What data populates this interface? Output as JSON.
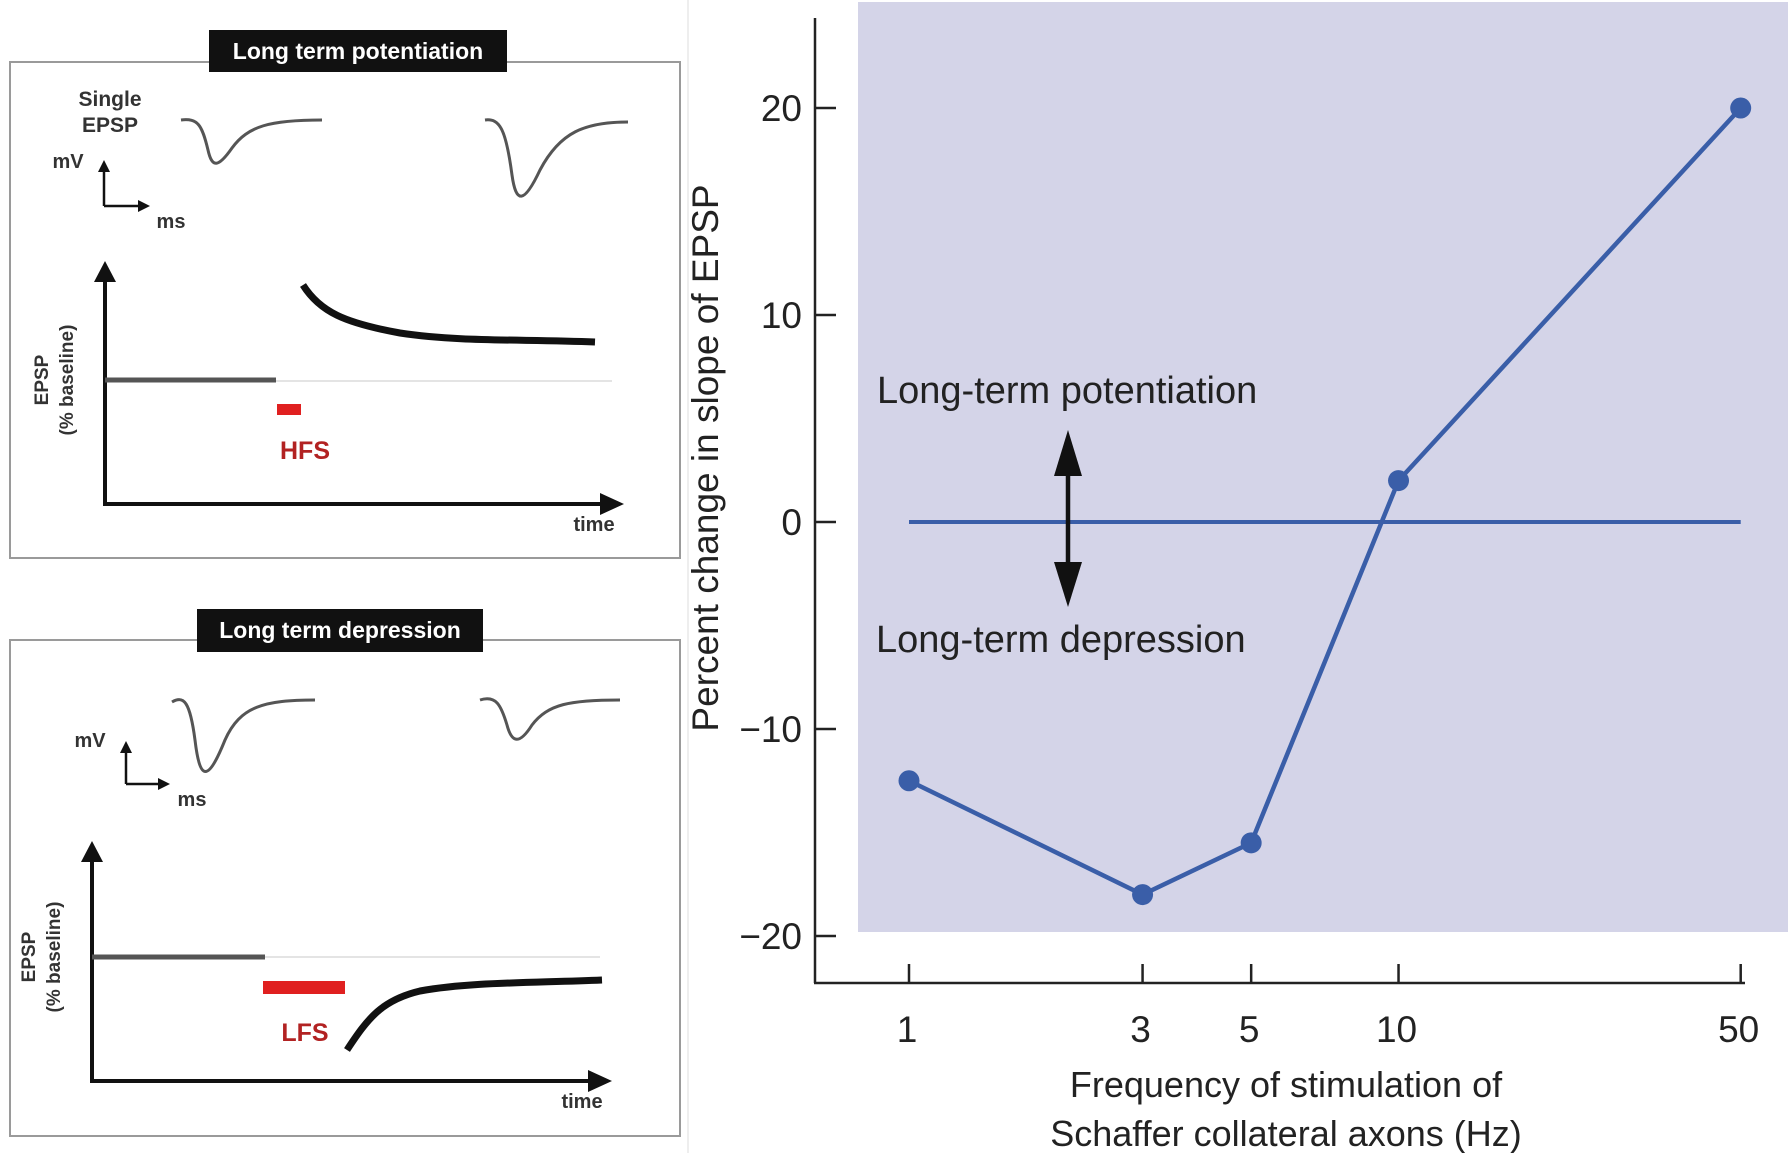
{
  "ltp_panel": {
    "title": "Long term potentiation",
    "single_label_line1": "Single",
    "single_label_line2": "EPSP",
    "mv_label": "mV",
    "ms_label": "ms",
    "y_label_line1": "EPSP",
    "y_label_line2": "(% baseline)",
    "x_label": "time",
    "stim_label": "HFS",
    "stim_color": "#e02020"
  },
  "ltd_panel": {
    "title": "Long term depression",
    "mv_label": "mV",
    "ms_label": "ms",
    "y_label_line1": "EPSP",
    "y_label_line2": "(% baseline)",
    "x_label": "time",
    "stim_label": "LFS",
    "stim_color": "#e02020"
  },
  "chart_data": {
    "type": "line",
    "title": "",
    "xlabel_line1": "Frequency of stimulation of",
    "xlabel_line2": "Schaffer collateral axons (Hz)",
    "ylabel": "Percent change in slope of EPSP",
    "x_scale": "log",
    "x": [
      1,
      3,
      5,
      10,
      50
    ],
    "x_tick_labels": [
      "1",
      "3",
      "5",
      "10",
      "50"
    ],
    "y_ticks": [
      20,
      10,
      0,
      -10,
      -20
    ],
    "y_tick_labels": [
      "20",
      "10",
      "0",
      "−10",
      "−20"
    ],
    "ylim": [
      -20,
      24
    ],
    "series": [
      {
        "values": [
          -12.5,
          -18,
          -15.5,
          2,
          20
        ],
        "color": "#3a5ea8"
      }
    ],
    "reference_line": {
      "y": 0,
      "color": "#3a5ea8"
    },
    "annotations": {
      "ltp": "Long-term potentiation",
      "ltd": "Long-term depression"
    },
    "background_color": "#d4d4e8",
    "grid": false
  }
}
